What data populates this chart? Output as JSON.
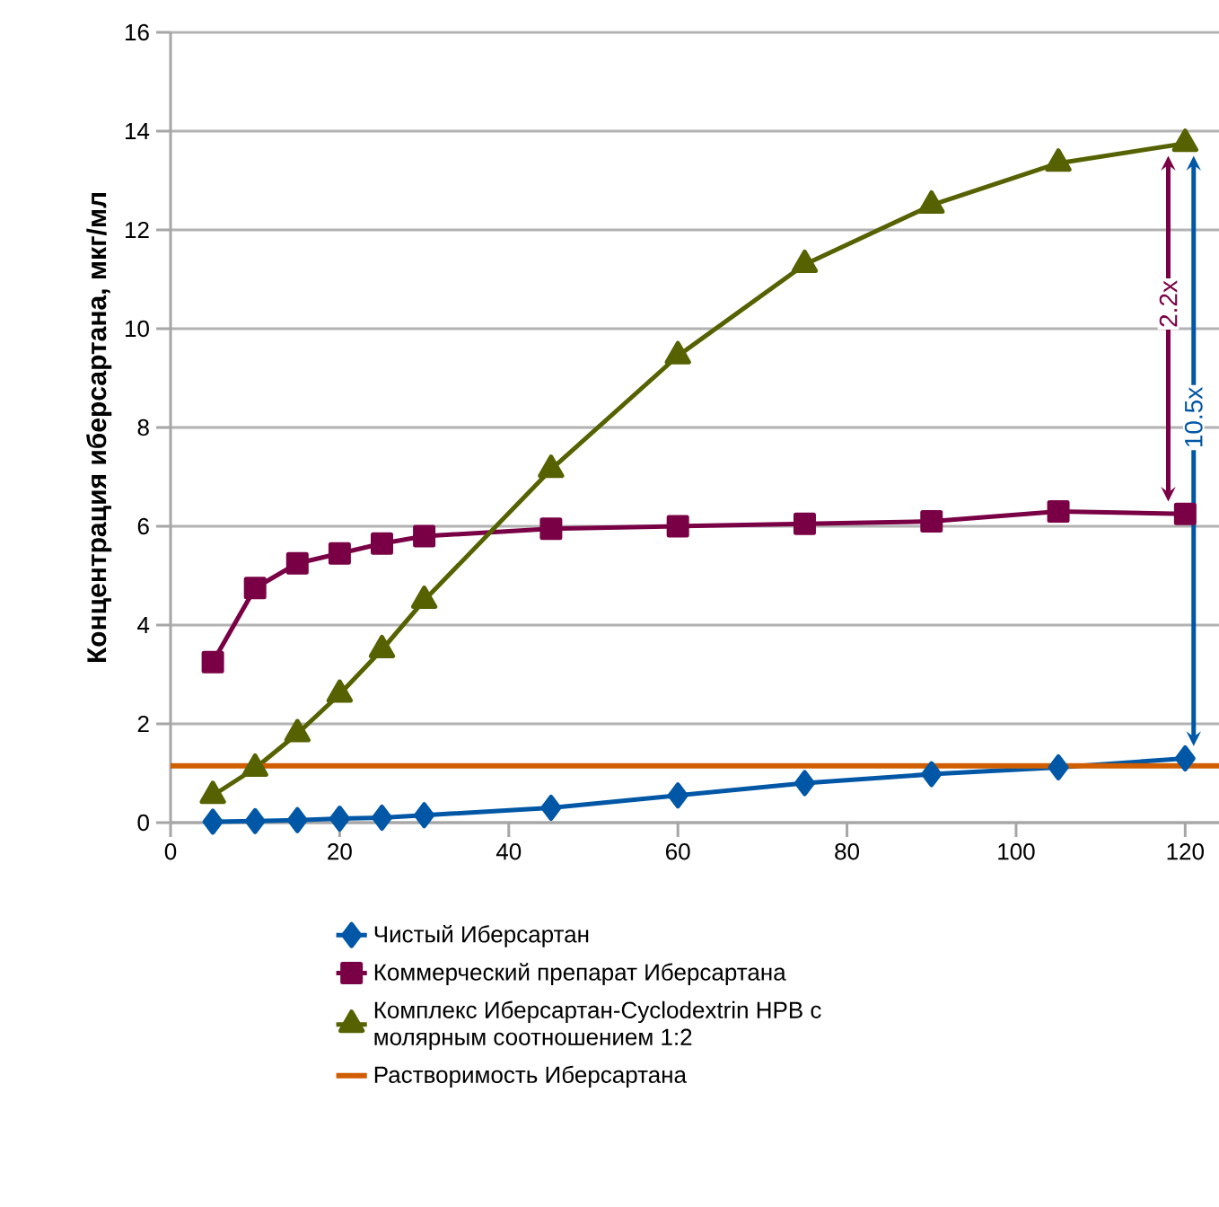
{
  "chart_data": {
    "type": "line",
    "ylabel": "Концентрация иберсартана, мкг/мл",
    "x": [
      5,
      10,
      15,
      20,
      25,
      30,
      45,
      60,
      75,
      90,
      105,
      120
    ],
    "xlim": [
      0,
      124
    ],
    "xticks": [
      0,
      20,
      40,
      60,
      80,
      100,
      120
    ],
    "ylim": [
      0,
      16
    ],
    "yticks": [
      0,
      2,
      4,
      6,
      8,
      10,
      12,
      14,
      16
    ],
    "grid": "y",
    "legend": "bottom",
    "line_style": "solid",
    "series": [
      {
        "name": "Чистый Иберсартан",
        "color": "#0057a6",
        "marker": "diamond",
        "values": [
          0.02,
          0.03,
          0.05,
          0.08,
          0.1,
          0.15,
          0.3,
          0.55,
          0.8,
          0.98,
          1.12,
          1.3
        ]
      },
      {
        "name": "Коммерческий препарат Иберсартана",
        "color": "#7a0046",
        "marker": "square",
        "values": [
          3.25,
          4.75,
          5.25,
          5.45,
          5.65,
          5.8,
          5.95,
          6.0,
          6.05,
          6.1,
          6.3,
          6.25
        ]
      },
      {
        "name": "Комплекс Иберсартан-Cyclodextrin HPB с молярным соотношением 1:2",
        "color": "#566200",
        "marker": "triangle",
        "values": [
          0.55,
          1.1,
          1.8,
          2.6,
          3.5,
          4.5,
          7.15,
          9.45,
          11.3,
          12.5,
          13.35,
          13.75
        ]
      },
      {
        "name": "Растворимость Иберсартана",
        "color": "#d05e00",
        "marker": "none",
        "x": [
          0,
          124
        ],
        "values": [
          1.15,
          1.15
        ]
      }
    ],
    "annotations": [
      {
        "text": "2.2x",
        "x": 118,
        "y": 10.5
      },
      {
        "text": "10.5x",
        "x": 121,
        "y": 8.2
      }
    ]
  }
}
